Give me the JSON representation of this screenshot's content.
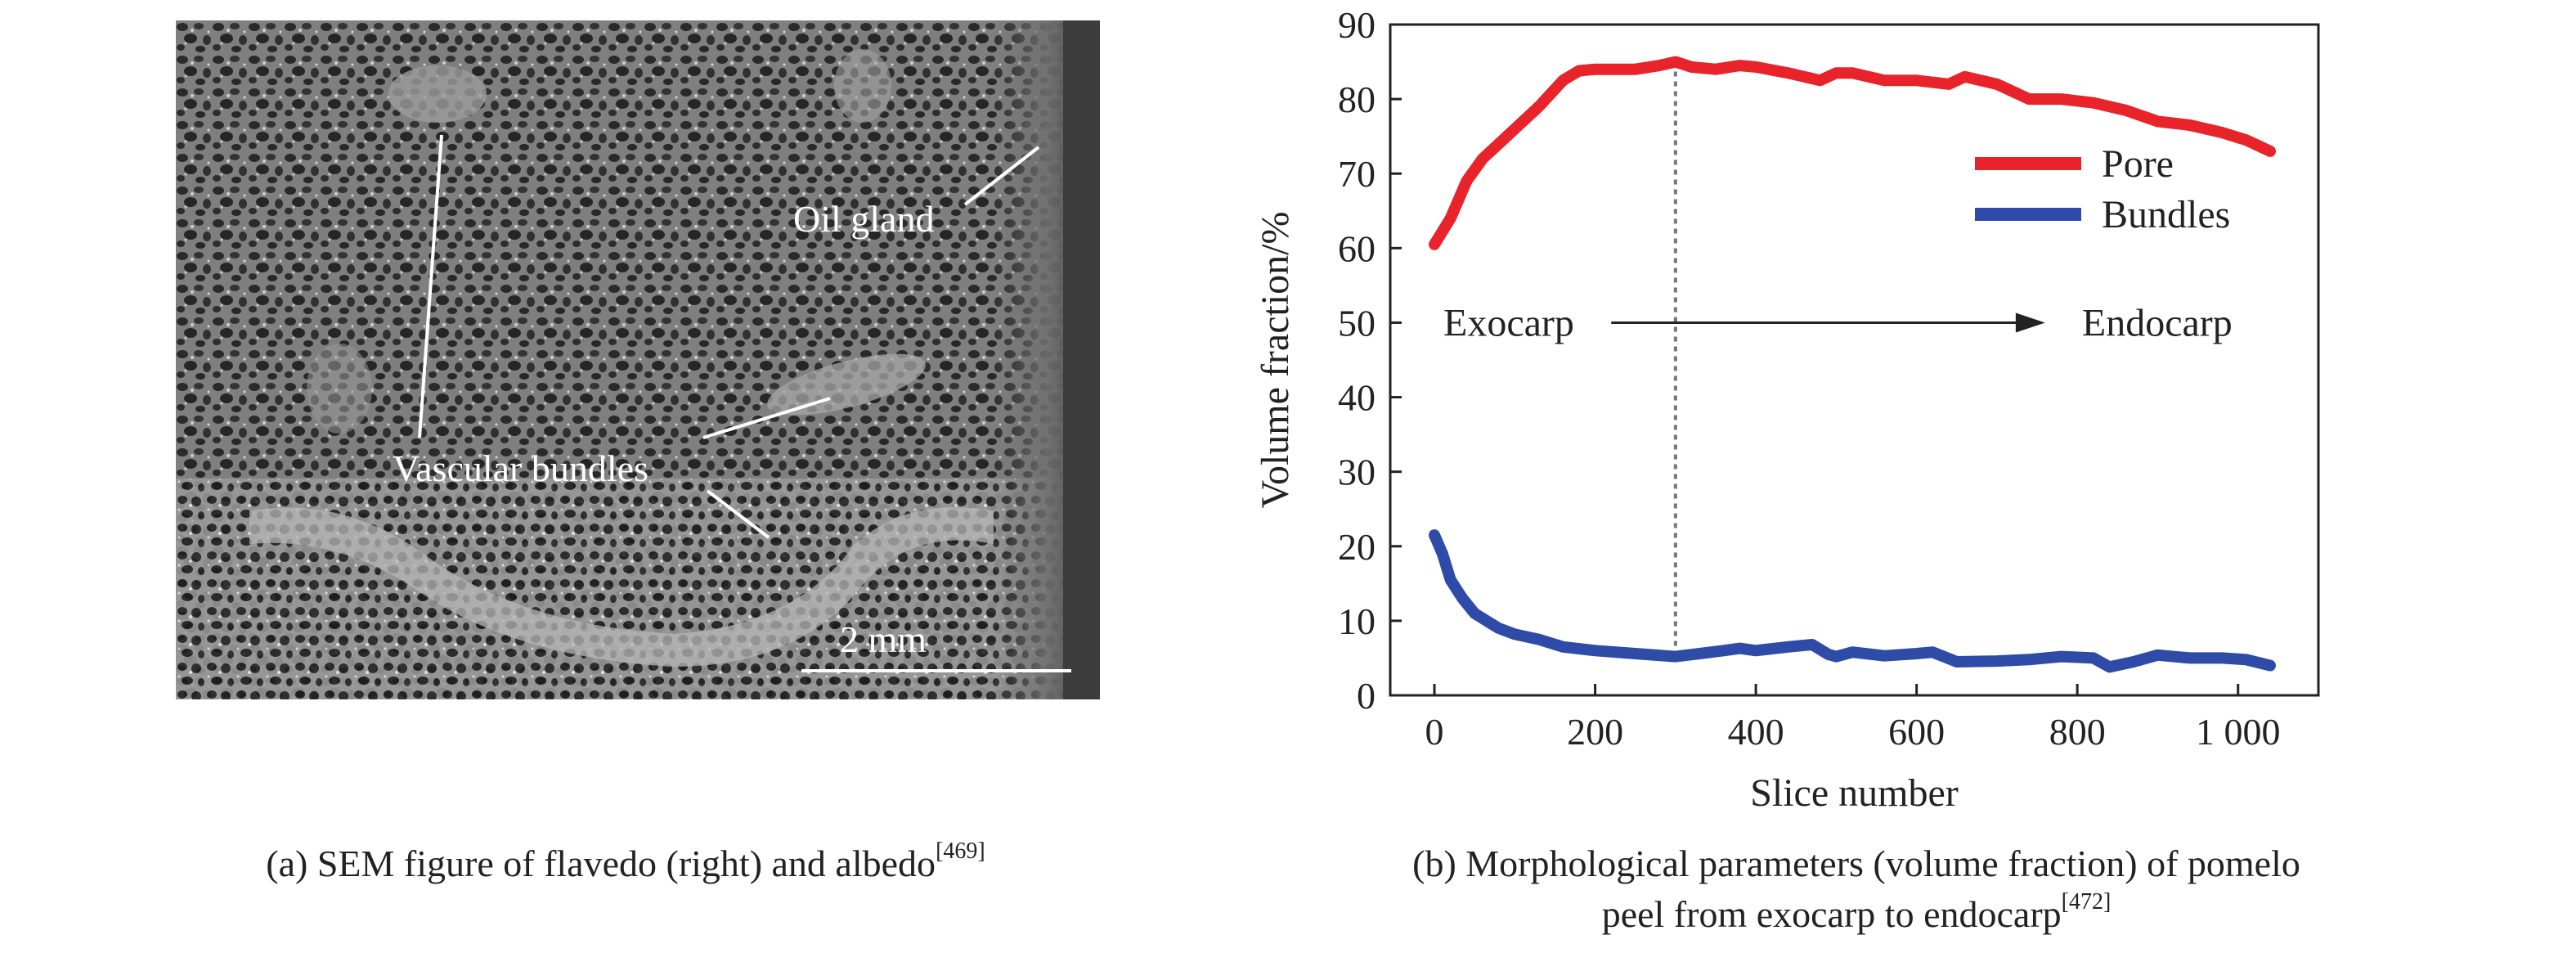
{
  "panel_a": {
    "labels": {
      "oil_gland": "Oil gland",
      "vascular_bundles": "Vascular bundles",
      "scale_bar": "2 mm"
    }
  },
  "captions": {
    "a_text": "(a) SEM figure of flavedo (right) and albedo",
    "a_ref": "[469]",
    "b_line1": "(b) Morphological parameters (volume fraction) of pomelo",
    "b_line2": "peel from exocarp to endocarp",
    "b_ref": "[472]"
  },
  "chart_data": {
    "type": "line",
    "title": "",
    "xlabel": "Slice number",
    "ylabel": "Volume fraction/%",
    "xlim": [
      -55,
      1100
    ],
    "ylim": [
      0,
      90
    ],
    "xticks": [
      0,
      200,
      400,
      600,
      800,
      1000
    ],
    "xtick_labels": [
      "0",
      "200",
      "400",
      "600",
      "800",
      "1 000"
    ],
    "yticks": [
      0,
      10,
      20,
      30,
      40,
      50,
      60,
      70,
      80,
      90
    ],
    "ytick_labels": [
      "0",
      "10",
      "20",
      "30",
      "40",
      "50",
      "60",
      "70",
      "80",
      "90"
    ],
    "grid": false,
    "legend": "top-right",
    "series": [
      {
        "name": "Pore",
        "color": "#e8232a",
        "x": [
          0,
          20,
          40,
          60,
          80,
          100,
          130,
          160,
          180,
          200,
          250,
          280,
          300,
          320,
          350,
          380,
          400,
          440,
          480,
          500,
          520,
          560,
          600,
          640,
          660,
          700,
          740,
          780,
          820,
          860,
          900,
          940,
          980,
          1010,
          1040
        ],
        "y": [
          60.5,
          64,
          69,
          72,
          74,
          76,
          79,
          82.5,
          83.8,
          84,
          84,
          84.5,
          85,
          84.3,
          84,
          84.5,
          84.3,
          83.5,
          82.5,
          83.5,
          83.5,
          82.5,
          82.5,
          82,
          83,
          82,
          80,
          80,
          79.5,
          78.5,
          77,
          76.5,
          75.5,
          74.5,
          73
        ]
      },
      {
        "name": "Bundles",
        "color": "#2e4ba8",
        "x": [
          0,
          10,
          20,
          35,
          50,
          65,
          80,
          100,
          130,
          160,
          200,
          250,
          300,
          330,
          360,
          380,
          400,
          440,
          470,
          490,
          500,
          520,
          560,
          600,
          620,
          650,
          700,
          740,
          780,
          820,
          840,
          870,
          900,
          940,
          980,
          1010,
          1040
        ],
        "y": [
          21.5,
          19,
          15.5,
          13,
          11,
          10,
          9,
          8.2,
          7.5,
          6.5,
          6,
          5.6,
          5.2,
          5.6,
          6,
          6.3,
          6,
          6.5,
          6.8,
          5.5,
          5.2,
          5.8,
          5.3,
          5.6,
          5.8,
          4.5,
          4.6,
          4.8,
          5.2,
          5,
          3.8,
          4.5,
          5.4,
          5,
          5,
          4.8,
          4
        ]
      }
    ],
    "annotations": {
      "divider_x": 300,
      "arrow": {
        "from_label": "Exocarp",
        "to_label": "Endocarp",
        "y": 50,
        "x_start": 220,
        "x_end": 760
      }
    }
  }
}
